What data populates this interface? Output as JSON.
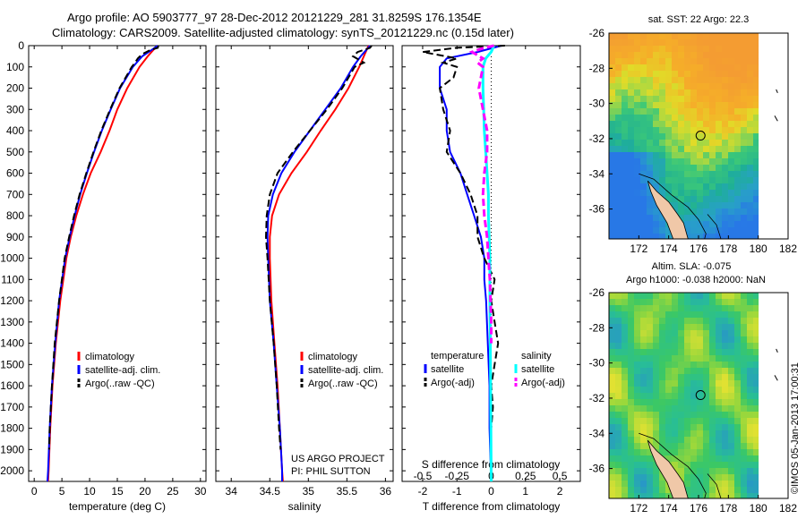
{
  "figure": {
    "title_line1": "Argo profile: AO 5903777_97 28-Dec-2012 20121229_281 31.8259S 176.1354E",
    "title_line2": "Climatology: CARS2009. Satellite-adjusted climatology: synTS_20121229.nc (0.15d later)",
    "vertical_stamp": "©IMOS 05-Jan-2013 17:00:31"
  },
  "colors": {
    "climatology": "#ff0000",
    "satellite_adj": "#0000ff",
    "argo": "#000000",
    "salinity_satellite": "#00ffff",
    "salinity_argo": "#ff00ff",
    "land": "#f0c8a8"
  },
  "depth_ticks": [
    0,
    100,
    200,
    300,
    400,
    500,
    600,
    700,
    800,
    900,
    1000,
    1100,
    1200,
    1300,
    1400,
    1500,
    1600,
    1700,
    1800,
    1900,
    2000
  ],
  "chart_data": [
    {
      "type": "line",
      "panel": "temperature",
      "xlabel": "temperature (deg C)",
      "xlim": [
        -1,
        31
      ],
      "ylim": [
        2050,
        0
      ],
      "xticks": [
        0,
        5,
        10,
        15,
        20,
        25,
        30
      ],
      "legend": [
        "climatology",
        "satellite-adj. clim.",
        "Argo(..raw -QC)"
      ],
      "series": [
        {
          "name": "climatology",
          "color": "#ff0000",
          "depth": [
            0,
            20,
            50,
            100,
            200,
            300,
            400,
            500,
            600,
            700,
            800,
            900,
            1000,
            1200,
            1400,
            1600,
            1800,
            2000,
            2050
          ],
          "values": [
            22.3,
            21.5,
            20.5,
            19.0,
            16.8,
            15.0,
            13.6,
            12.0,
            10.2,
            8.8,
            7.6,
            6.6,
            5.8,
            4.7,
            3.9,
            3.3,
            2.9,
            2.6,
            2.5
          ]
        },
        {
          "name": "satellite-adj. clim.",
          "color": "#0000ff",
          "depth": [
            0,
            20,
            50,
            100,
            200,
            300,
            400,
            500,
            600,
            700,
            800,
            900,
            1000,
            1200,
            1400,
            1600,
            1800,
            2000,
            2050
          ],
          "values": [
            22.3,
            21.2,
            19.5,
            17.8,
            15.5,
            13.8,
            12.2,
            10.8,
            9.5,
            8.3,
            7.3,
            6.4,
            5.6,
            4.5,
            3.8,
            3.2,
            2.8,
            2.5,
            2.4
          ]
        },
        {
          "name": "Argo(..raw -QC)",
          "color": "#000000",
          "dashed": true,
          "depth": [
            0,
            10,
            20,
            40,
            60,
            80,
            100,
            150,
            200,
            300,
            400,
            500,
            600,
            700,
            800,
            900,
            1000,
            1200,
            1400,
            1600,
            1800,
            1900
          ],
          "values": [
            22.4,
            22.3,
            21.0,
            19.5,
            18.7,
            18.2,
            17.6,
            16.5,
            15.4,
            13.7,
            12.1,
            10.7,
            9.4,
            8.2,
            7.2,
            6.3,
            5.5,
            4.5,
            3.7,
            3.2,
            2.8,
            2.7
          ]
        }
      ]
    },
    {
      "type": "line",
      "panel": "salinity",
      "xlabel": "salinity",
      "xlim": [
        33.8,
        36.1
      ],
      "ylim": [
        2050,
        0
      ],
      "xticks": [
        34,
        34.5,
        35,
        35.5,
        36
      ],
      "legend": [
        "climatology",
        "satellite-adj. clim.",
        "Argo(..raw -QC)"
      ],
      "annotation_line1": "US ARGO PROJECT",
      "annotation_line2": "PI: PHIL SUTTON",
      "series": [
        {
          "name": "climatology",
          "color": "#ff0000",
          "depth": [
            0,
            50,
            100,
            200,
            300,
            400,
            500,
            600,
            700,
            800,
            900,
            1000,
            1200,
            1400,
            1600,
            1800,
            2000,
            2050
          ],
          "values": [
            35.78,
            35.72,
            35.66,
            35.52,
            35.35,
            35.16,
            34.98,
            34.78,
            34.62,
            34.53,
            34.5,
            34.5,
            34.52,
            34.56,
            34.6,
            34.63,
            34.66,
            34.67
          ]
        },
        {
          "name": "satellite-adj. clim.",
          "color": "#0000ff",
          "depth": [
            0,
            50,
            100,
            200,
            300,
            400,
            500,
            600,
            700,
            800,
            900,
            1000,
            1200,
            1400,
            1600,
            1800,
            2000,
            2050
          ],
          "values": [
            35.8,
            35.68,
            35.58,
            35.42,
            35.22,
            35.02,
            34.82,
            34.65,
            34.54,
            34.48,
            34.47,
            34.48,
            34.5,
            34.55,
            34.59,
            34.63,
            34.66,
            34.66
          ]
        },
        {
          "name": "Argo(..raw -QC)",
          "color": "#000000",
          "dashed": true,
          "depth": [
            0,
            10,
            30,
            50,
            80,
            100,
            200,
            300,
            400,
            500,
            600,
            700,
            800,
            900,
            1000,
            1200,
            1400,
            1600,
            1800,
            1900
          ],
          "values": [
            35.82,
            35.8,
            35.64,
            35.58,
            35.72,
            35.6,
            35.44,
            35.24,
            35.02,
            34.8,
            34.6,
            34.5,
            34.46,
            34.45,
            34.47,
            34.5,
            34.55,
            34.59,
            34.62,
            34.64
          ]
        }
      ]
    },
    {
      "type": "line",
      "panel": "difference",
      "xlabel": "T difference from climatology",
      "xlabel_top": "S difference from climatology",
      "xlim": [
        -2.6,
        2.6
      ],
      "ylim": [
        2050,
        0
      ],
      "xticks": [
        -2,
        -1,
        0,
        1,
        2
      ],
      "xticks_top": [
        {
          "label": "-0.5",
          "t_pos": -2.0
        },
        {
          "label": "-0.25",
          "t_pos": -1.0
        },
        {
          "label": "0",
          "t_pos": 0.0
        },
        {
          "label": "0.25",
          "t_pos": 1.0
        },
        {
          "label": "0.5",
          "t_pos": 2.0
        }
      ],
      "legend_col1_header": "temperature",
      "legend_col2_header": "salinity",
      "legend_col1": [
        "satellite",
        "Argo(-adj)"
      ],
      "legend_col2": [
        "satellite",
        "Argo(-adj)"
      ],
      "series": [
        {
          "name": "satellite",
          "quantity": "temperature",
          "color": "#0000ff",
          "depth": [
            0,
            30,
            60,
            100,
            200,
            300,
            400,
            500,
            600,
            700,
            800,
            900,
            1000,
            1100,
            1200,
            1400,
            1600,
            1800,
            2050
          ],
          "values": [
            0.3,
            -0.4,
            -1.3,
            -1.5,
            -1.5,
            -1.3,
            -1.3,
            -1.2,
            -0.9,
            -0.7,
            -0.5,
            -0.3,
            -0.2,
            -0.2,
            -0.15,
            -0.1,
            -0.05,
            -0.05,
            0.0
          ]
        },
        {
          "name": "Argo(-adj)",
          "quantity": "temperature",
          "color": "#000000",
          "dashed": true,
          "depth": [
            0,
            10,
            30,
            60,
            80,
            100,
            150,
            200,
            300,
            400,
            500,
            600,
            700,
            800,
            900,
            1000,
            1100,
            1200,
            1300,
            1400,
            1500,
            1600,
            1700,
            1800,
            1900
          ],
          "values": [
            0.4,
            -1.0,
            -2.0,
            -1.0,
            -1.4,
            -1.0,
            -1.1,
            -1.5,
            -1.4,
            -1.2,
            -1.3,
            -0.9,
            -0.6,
            -0.4,
            -0.4,
            -0.2,
            0.1,
            0.0,
            0.1,
            0.2,
            0.1,
            0.0,
            0.05,
            0.0,
            0.0
          ]
        },
        {
          "name": "satellite",
          "quantity": "salinity",
          "color": "#00ffff",
          "depth": [
            0,
            30,
            60,
            100,
            200,
            300,
            400,
            500,
            600,
            700,
            800,
            900,
            1000,
            1200,
            1500,
            2050
          ],
          "values": [
            0.02,
            0.0,
            -0.04,
            -0.06,
            -0.06,
            -0.055,
            -0.05,
            -0.04,
            -0.03,
            -0.02,
            -0.02,
            -0.015,
            -0.01,
            -0.01,
            -0.005,
            0.0
          ]
        },
        {
          "name": "Argo(-adj)",
          "quantity": "salinity",
          "color": "#ff00ff",
          "dashed": true,
          "depth": [
            0,
            10,
            30,
            60,
            80,
            100,
            200,
            300,
            400,
            500,
            600,
            700,
            800,
            900,
            1000,
            1100,
            1200,
            1300,
            1400
          ],
          "values": [
            0.02,
            -0.05,
            -0.14,
            -0.06,
            -0.1,
            -0.06,
            -0.09,
            -0.06,
            -0.03,
            -0.03,
            -0.05,
            -0.06,
            -0.05,
            -0.03,
            -0.02,
            -0.01,
            -0.005,
            0.0,
            0.0
          ]
        }
      ]
    },
    {
      "type": "heatmap",
      "panel": "sst_map",
      "title": "sat. SST: 22 Argo: 22.3",
      "xlim": [
        170,
        182
      ],
      "ylim": [
        -37.7,
        -26
      ],
      "xticks": [
        172,
        174,
        176,
        178,
        180,
        182
      ],
      "yticks": [
        -26,
        -28,
        -30,
        -32,
        -34,
        -36
      ],
      "profile_location": {
        "lon": 176.1354,
        "lat": -31.8259
      }
    },
    {
      "type": "heatmap",
      "panel": "sla_map",
      "title_line1": "Altim. SLA: -0.075",
      "title_line2": "Argo h1000: -0.038 h2000: NaN",
      "xlim": [
        170,
        182
      ],
      "ylim": [
        -37.7,
        -26
      ],
      "xticks": [
        172,
        174,
        176,
        178,
        180,
        182
      ],
      "yticks": [
        -26,
        -28,
        -30,
        -32,
        -34,
        -36
      ],
      "profile_location": {
        "lon": 176.1354,
        "lat": -31.8259
      }
    }
  ]
}
